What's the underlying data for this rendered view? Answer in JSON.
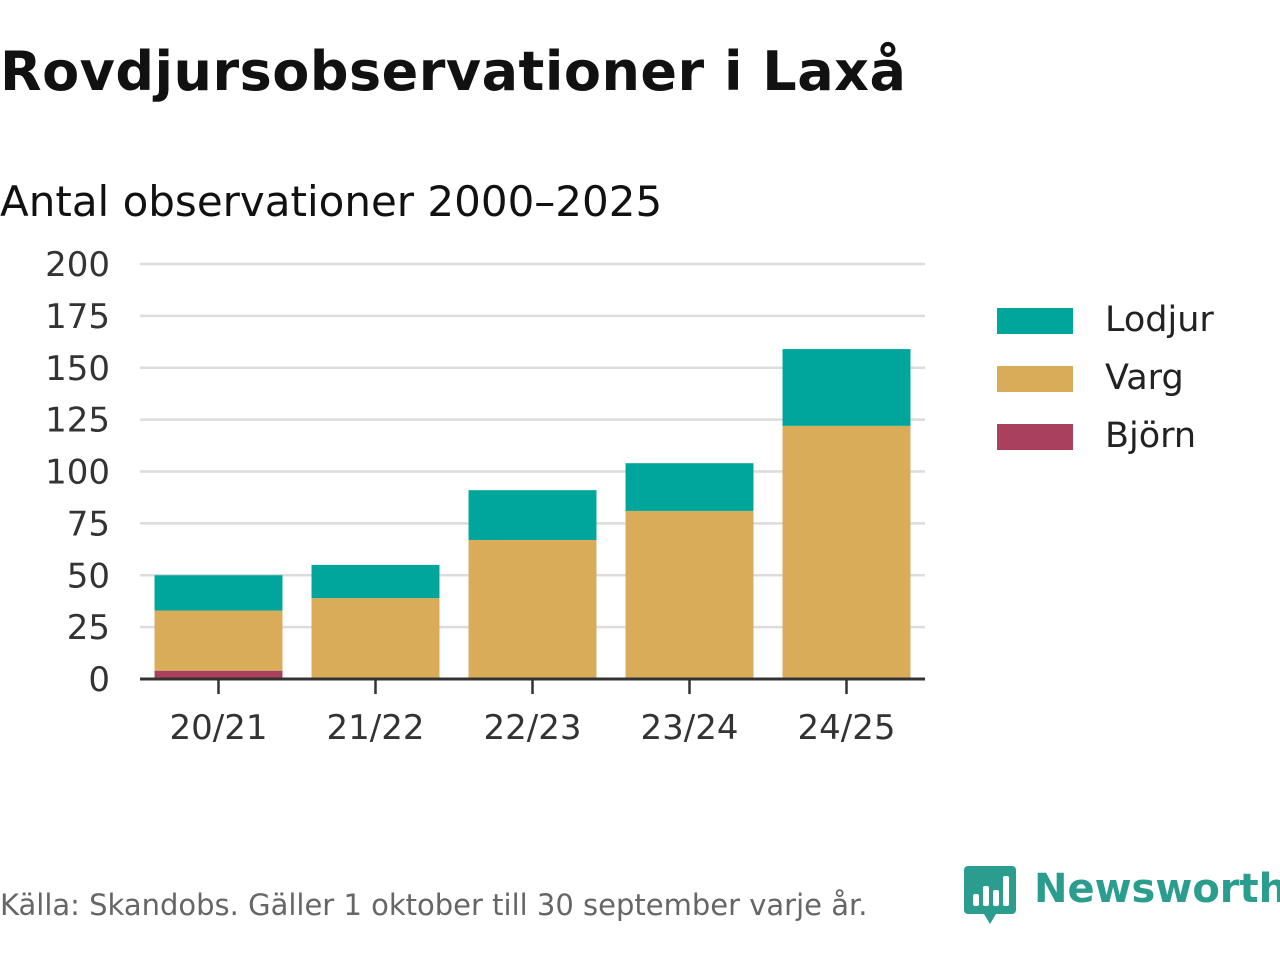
{
  "title": "Rovdjursobservationer i Laxå",
  "subtitle": "Antal observationer 2000–2025",
  "source": "Källa: Skandobs. Gäller 1 oktober till 30 september varje år.",
  "brand": {
    "name": "Newsworthy"
  },
  "colors": {
    "lodjur": "#00a59b",
    "varg": "#d9ac5a",
    "bjorn": "#a8405e",
    "grid": "#dcdcdc",
    "axis": "#333333",
    "brand": "#2a9d8f"
  },
  "legend": [
    {
      "label": "Lodjur",
      "color": "#00a59b"
    },
    {
      "label": "Varg",
      "color": "#d9ac5a"
    },
    {
      "label": "Björn",
      "color": "#a8405e"
    }
  ],
  "chart_data": {
    "type": "bar",
    "stacked": true,
    "title": "Rovdjursobservationer i Laxå",
    "subtitle": "Antal observationer 2000–2025",
    "xlabel": "",
    "ylabel": "",
    "categories": [
      "20/21",
      "21/22",
      "22/23",
      "23/24",
      "24/25"
    ],
    "series": [
      {
        "name": "Björn",
        "values": [
          4,
          0,
          0,
          0,
          0
        ]
      },
      {
        "name": "Varg",
        "values": [
          29,
          39,
          67,
          81,
          122
        ]
      },
      {
        "name": "Lodjur",
        "values": [
          17,
          16,
          24,
          23,
          37
        ]
      }
    ],
    "ylim": [
      0,
      200
    ],
    "yticks": [
      0,
      25,
      50,
      75,
      100,
      125,
      150,
      175,
      200
    ],
    "grid": true,
    "legend_position": "right"
  }
}
